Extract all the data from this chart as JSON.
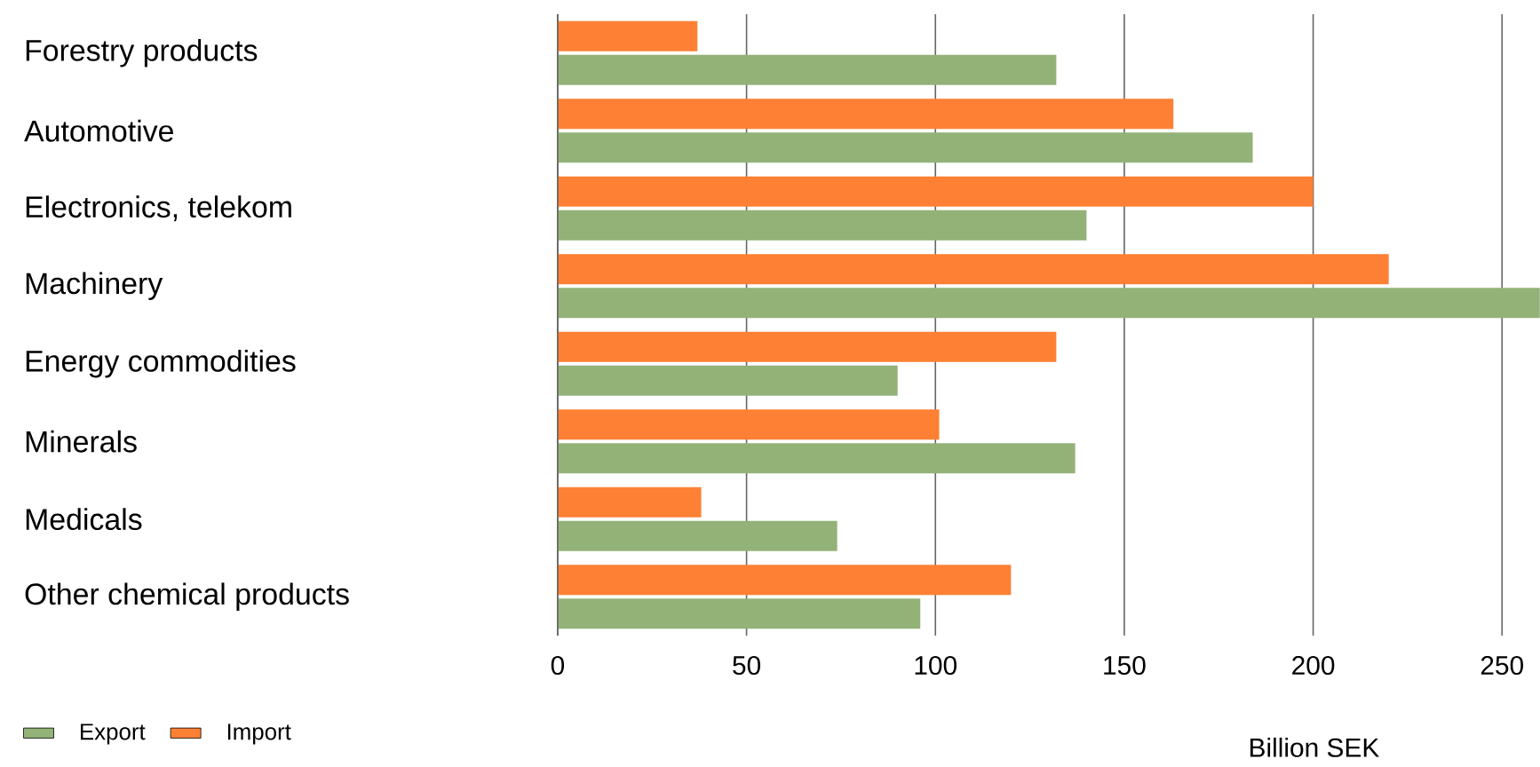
{
  "chart_data": {
    "type": "bar",
    "orientation": "horizontal",
    "xlabel": "Billion SEK",
    "categories": [
      "Forestry products",
      "Automotive",
      "Electronics, telekom",
      "Machinery",
      "Energy commodities",
      "Minerals",
      "Medicals",
      "Other chemical products"
    ],
    "series": [
      {
        "name": "Export",
        "color": "#93b278",
        "values": [
          132,
          184,
          140,
          260,
          90,
          137,
          74,
          96
        ]
      },
      {
        "name": "Import",
        "color": "#fe8034",
        "values": [
          37,
          163,
          200,
          220,
          132,
          101,
          38,
          120
        ]
      }
    ],
    "xlim": [
      0,
      260
    ],
    "xticks": [
      0,
      50,
      100,
      150,
      200,
      250
    ],
    "grid": "x",
    "legend": "bottom left"
  }
}
